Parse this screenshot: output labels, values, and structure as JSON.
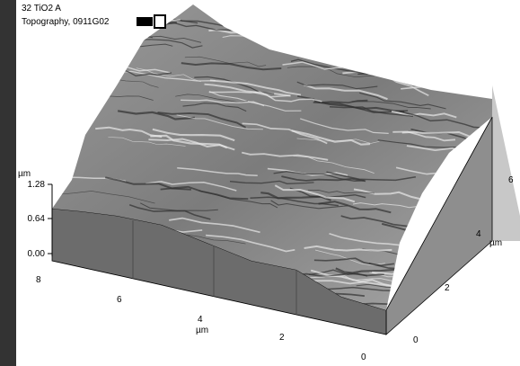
{
  "header": {
    "sample": "32 TiO2 A",
    "image": "Topography, 0911G02"
  },
  "z_axis": {
    "unit": "µm",
    "ticks": [
      "1.28",
      "0.64",
      "0.00"
    ]
  },
  "x_axis": {
    "unit": "µm",
    "ticks": [
      "8",
      "6",
      "4",
      "2",
      "0"
    ]
  },
  "y_axis": {
    "unit": "µm",
    "ticks": [
      "0",
      "2",
      "4",
      "6"
    ]
  }
}
